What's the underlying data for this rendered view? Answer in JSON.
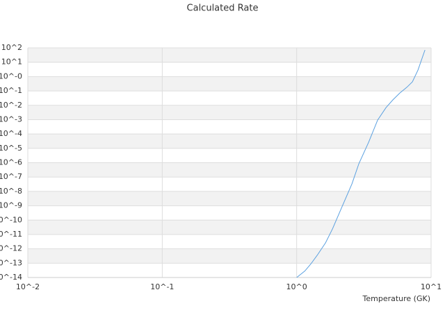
{
  "chart_data": {
    "type": "line",
    "title": "Calculated Rate",
    "x_label": "Temperature (GK)",
    "x_log": true,
    "y_log": true,
    "grid": true,
    "band_color": "#f2f2f2",
    "xlim": [
      0.01,
      10
    ],
    "ylim": [
      1e-14,
      100
    ],
    "xticks": [
      {
        "value": 0.01,
        "label": "10^-2"
      },
      {
        "value": 0.1,
        "label": "10^-1"
      },
      {
        "value": 1,
        "label": "10^0"
      },
      {
        "value": 10,
        "label": "10^1"
      }
    ],
    "yticks": [
      {
        "value": 100,
        "label": "10^2"
      },
      {
        "value": 10,
        "label": "10^1"
      },
      {
        "value": 1,
        "label": "10^-0"
      },
      {
        "value": 0.1,
        "label": "10^-1"
      },
      {
        "value": 0.01,
        "label": "10^-2"
      },
      {
        "value": 0.001,
        "label": "10^-3"
      },
      {
        "value": 0.0001,
        "label": "10^-4"
      },
      {
        "value": 1e-05,
        "label": "10^-5"
      },
      {
        "value": 1e-06,
        "label": "10^-6"
      },
      {
        "value": 1e-07,
        "label": "10^-7"
      },
      {
        "value": 1e-08,
        "label": "10^-8"
      },
      {
        "value": 1e-09,
        "label": "10^-9"
      },
      {
        "value": 1e-10,
        "label": "10^-10"
      },
      {
        "value": 1e-11,
        "label": "10^-11"
      },
      {
        "value": 1e-12,
        "label": "10^-12"
      },
      {
        "value": 1e-13,
        "label": "10^-13"
      },
      {
        "value": 1e-14,
        "label": "10^-14"
      }
    ],
    "series": [
      {
        "color": "#5aa0e0",
        "x": [
          1.0,
          1.15,
          1.28,
          1.42,
          1.64,
          1.85,
          2.13,
          2.58,
          2.9,
          3.43,
          4.0,
          4.62,
          5.2,
          5.86,
          6.6,
          7.26,
          7.98,
          9.0
        ],
        "values": [
          1e-14,
          2.8e-14,
          9.3e-14,
          3.5e-13,
          2.6e-12,
          2.5e-11,
          5.5e-10,
          3.4e-08,
          8.5e-07,
          2.7e-05,
          0.00093,
          0.0069,
          0.024,
          0.072,
          0.18,
          0.43,
          2.8,
          72
        ]
      }
    ]
  }
}
